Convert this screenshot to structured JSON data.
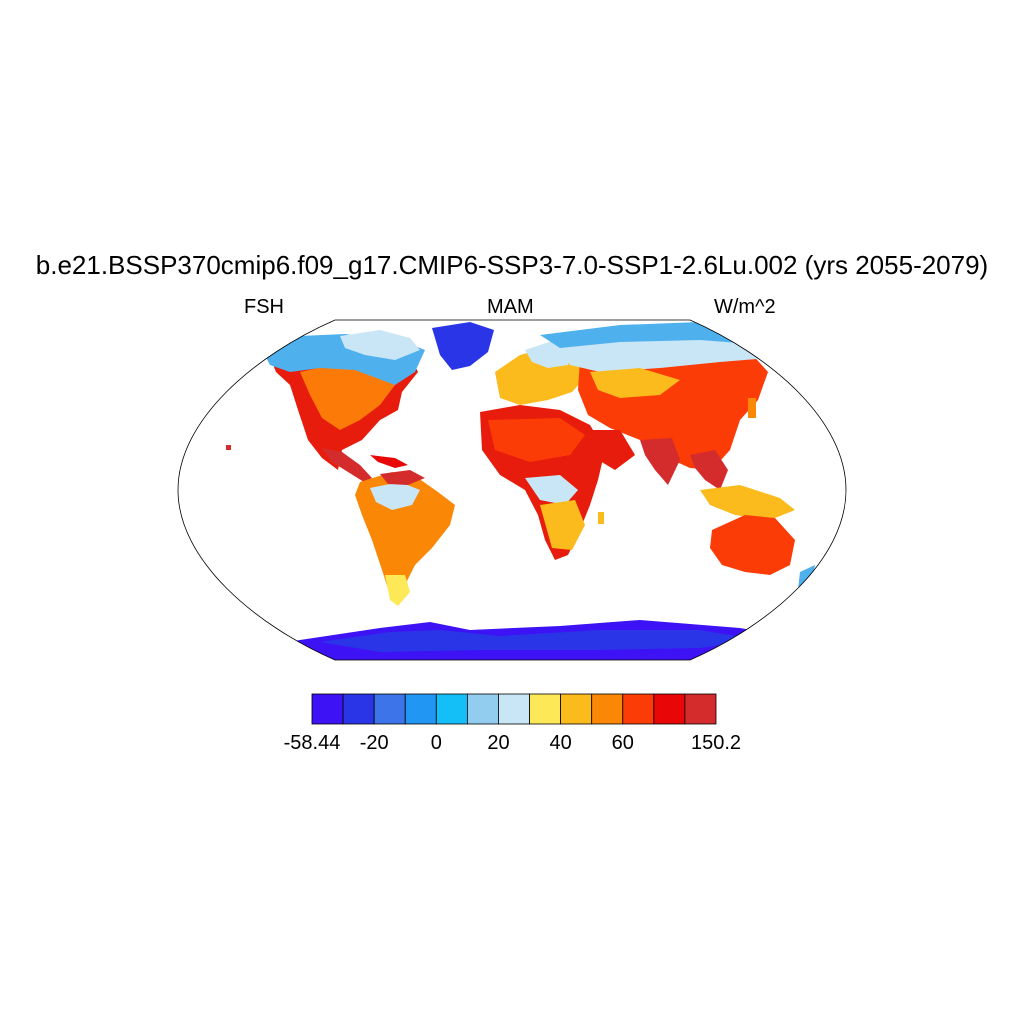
{
  "title": "b.e21.BSSP370cmip6.f09_g17.CMIP6-SSP3-7.0-SSP1-2.6Lu.002 (yrs 2055-2079)",
  "left_label": "FSH",
  "center_label": "MAM",
  "right_label": "W/m^2",
  "colorbar": {
    "colors": [
      "#3d12f5",
      "#2a35e8",
      "#3e74ea",
      "#2196f3",
      "#13bff6",
      "#92cdef",
      "#c9e6f6",
      "#fde857",
      "#fcbb1c",
      "#fb8707",
      "#fc3c06",
      "#e80606",
      "#d42c2c"
    ],
    "tick_labels": [
      "-58.44",
      "-20",
      "0",
      "20",
      "40",
      "60",
      "150.2"
    ]
  },
  "chart_data": {
    "type": "heatmap",
    "variable": "FSH",
    "season": "MAM",
    "units": "W/m^2",
    "projection": "Robinson (global)",
    "value_range": [
      -58.44,
      150.2
    ],
    "colorbar_ticks": [
      "-58.44",
      "-20",
      "0",
      "20",
      "40",
      "60",
      "150.2"
    ]
  }
}
